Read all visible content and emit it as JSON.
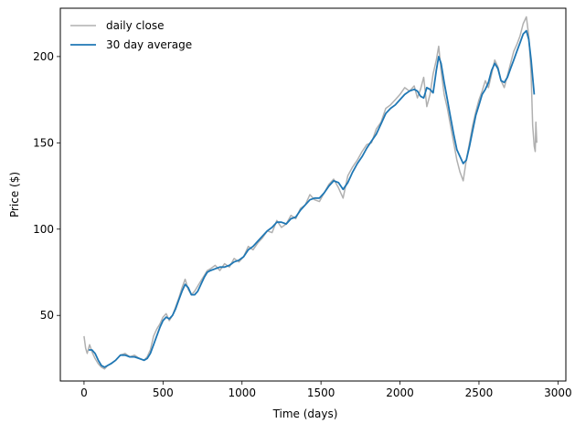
{
  "chart_data": {
    "type": "line",
    "title": "",
    "xlabel": "Time (days)",
    "ylabel": "Price ($)",
    "xlim": [
      -150,
      3050
    ],
    "ylim": [
      12,
      228
    ],
    "xticks": [
      0,
      500,
      1000,
      1500,
      2000,
      2500,
      3000
    ],
    "yticks": [
      50,
      100,
      150,
      200
    ],
    "xtick_labels": [
      "0",
      "500",
      "1000",
      "1500",
      "2000",
      "2500",
      "3000"
    ],
    "ytick_labels": [
      "50",
      "100",
      "150",
      "200"
    ],
    "grid": false,
    "legend_position": "top-left",
    "series": [
      {
        "name": "daily close",
        "color": "#b0b0b0",
        "x": [
          0,
          10,
          20,
          35,
          50,
          70,
          90,
          110,
          130,
          150,
          170,
          200,
          230,
          260,
          290,
          320,
          350,
          380,
          400,
          420,
          440,
          460,
          480,
          500,
          520,
          540,
          560,
          580,
          600,
          620,
          640,
          660,
          680,
          700,
          720,
          740,
          760,
          780,
          800,
          830,
          860,
          890,
          920,
          950,
          980,
          1010,
          1040,
          1070,
          1100,
          1130,
          1160,
          1190,
          1220,
          1250,
          1280,
          1310,
          1340,
          1370,
          1400,
          1430,
          1460,
          1490,
          1520,
          1550,
          1580,
          1610,
          1640,
          1670,
          1700,
          1730,
          1760,
          1790,
          1820,
          1850,
          1880,
          1910,
          1940,
          1970,
          2000,
          2030,
          2060,
          2090,
          2110,
          2130,
          2150,
          2170,
          2190,
          2210,
          2230,
          2245,
          2260,
          2280,
          2300,
          2320,
          2340,
          2360,
          2380,
          2400,
          2420,
          2440,
          2460,
          2480,
          2500,
          2520,
          2540,
          2560,
          2580,
          2600,
          2620,
          2640,
          2660,
          2680,
          2700,
          2720,
          2740,
          2760,
          2780,
          2800,
          2815,
          2830,
          2840,
          2850,
          2856,
          2860,
          2866
        ],
        "y": [
          38,
          31,
          28,
          33,
          29,
          25,
          22,
          20,
          19,
          21,
          22,
          24,
          27,
          28,
          26,
          27,
          25,
          24,
          26,
          30,
          38,
          42,
          45,
          49,
          51,
          47,
          50,
          55,
          60,
          66,
          71,
          65,
          62,
          64,
          67,
          70,
          73,
          76,
          77,
          79,
          76,
          80,
          78,
          83,
          81,
          84,
          90,
          88,
          92,
          95,
          99,
          98,
          105,
          101,
          103,
          108,
          106,
          112,
          114,
          120,
          117,
          116,
          121,
          126,
          129,
          124,
          118,
          131,
          136,
          140,
          145,
          149,
          150,
          158,
          162,
          170,
          172,
          175,
          178,
          182,
          180,
          183,
          176,
          181,
          188,
          171,
          178,
          190,
          198,
          206,
          192,
          178,
          170,
          160,
          150,
          140,
          133,
          128,
          140,
          150,
          160,
          168,
          175,
          180,
          186,
          182,
          190,
          198,
          194,
          186,
          182,
          189,
          196,
          203,
          207,
          212,
          219,
          223,
          212,
          190,
          160,
          148,
          145,
          162,
          150
        ]
      },
      {
        "name": "30 day average",
        "color": "#1f77b4",
        "x": [
          30,
          50,
          70,
          90,
          110,
          130,
          150,
          170,
          200,
          230,
          260,
          290,
          320,
          350,
          380,
          400,
          420,
          440,
          460,
          480,
          500,
          520,
          540,
          560,
          580,
          600,
          620,
          640,
          660,
          680,
          700,
          720,
          740,
          760,
          780,
          800,
          830,
          860,
          890,
          920,
          950,
          980,
          1010,
          1040,
          1070,
          1100,
          1130,
          1160,
          1190,
          1220,
          1250,
          1280,
          1310,
          1340,
          1370,
          1400,
          1430,
          1460,
          1490,
          1520,
          1550,
          1580,
          1610,
          1640,
          1670,
          1700,
          1730,
          1760,
          1790,
          1820,
          1850,
          1880,
          1910,
          1940,
          1970,
          2000,
          2030,
          2060,
          2090,
          2110,
          2130,
          2150,
          2170,
          2190,
          2210,
          2230,
          2245,
          2260,
          2280,
          2300,
          2320,
          2340,
          2360,
          2380,
          2400,
          2420,
          2440,
          2460,
          2480,
          2500,
          2520,
          2540,
          2560,
          2580,
          2600,
          2620,
          2640,
          2660,
          2680,
          2700,
          2720,
          2740,
          2760,
          2780,
          2800,
          2815,
          2830,
          2840,
          2850
        ],
        "y": [
          30,
          30,
          28,
          24,
          21,
          20,
          21,
          22,
          24,
          27,
          27,
          26,
          26,
          25,
          24,
          25,
          28,
          33,
          38,
          43,
          47,
          49,
          48,
          50,
          54,
          59,
          64,
          68,
          66,
          62,
          62,
          64,
          68,
          72,
          75,
          76,
          77,
          78,
          78,
          79,
          81,
          82,
          84,
          88,
          90,
          93,
          96,
          99,
          101,
          104,
          104,
          103,
          106,
          107,
          111,
          114,
          117,
          118,
          118,
          121,
          125,
          128,
          127,
          123,
          127,
          133,
          138,
          142,
          147,
          151,
          155,
          161,
          167,
          170,
          172,
          175,
          178,
          180,
          181,
          180,
          177,
          176,
          182,
          181,
          179,
          192,
          200,
          196,
          185,
          175,
          165,
          155,
          146,
          142,
          138,
          140,
          148,
          157,
          166,
          172,
          178,
          181,
          185,
          192,
          196,
          193,
          186,
          185,
          188,
          193,
          198,
          203,
          208,
          213,
          215,
          210,
          198,
          188,
          178
        ]
      }
    ]
  }
}
